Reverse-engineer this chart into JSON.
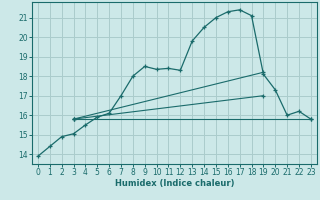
{
  "xlabel": "Humidex (Indice chaleur)",
  "bg_color": "#cce8e8",
  "grid_color": "#aacccc",
  "line_color": "#1a6b6b",
  "xlim": [
    -0.5,
    23.5
  ],
  "ylim": [
    13.5,
    21.8
  ],
  "yticks": [
    14,
    15,
    16,
    17,
    18,
    19,
    20,
    21
  ],
  "xticks": [
    0,
    1,
    2,
    3,
    4,
    5,
    6,
    7,
    8,
    9,
    10,
    11,
    12,
    13,
    14,
    15,
    16,
    17,
    18,
    19,
    20,
    21,
    22,
    23
  ],
  "series": [
    {
      "x": [
        0,
        1,
        2,
        3,
        4,
        5,
        6,
        7,
        8,
        9,
        10,
        11,
        12,
        13,
        14,
        15,
        16,
        17,
        18,
        19,
        20,
        21,
        22,
        23
      ],
      "y": [
        13.9,
        14.4,
        14.9,
        15.05,
        15.5,
        15.9,
        16.1,
        17.0,
        18.0,
        18.5,
        18.35,
        18.4,
        18.3,
        19.8,
        20.5,
        21.0,
        21.3,
        21.4,
        21.1,
        18.1,
        17.3,
        16.0,
        16.2,
        15.8
      ]
    },
    {
      "x": [
        3,
        19
      ],
      "y": [
        15.8,
        18.2
      ]
    },
    {
      "x": [
        3,
        19
      ],
      "y": [
        15.8,
        17.0
      ]
    },
    {
      "x": [
        3,
        23
      ],
      "y": [
        15.8,
        15.8
      ]
    }
  ]
}
